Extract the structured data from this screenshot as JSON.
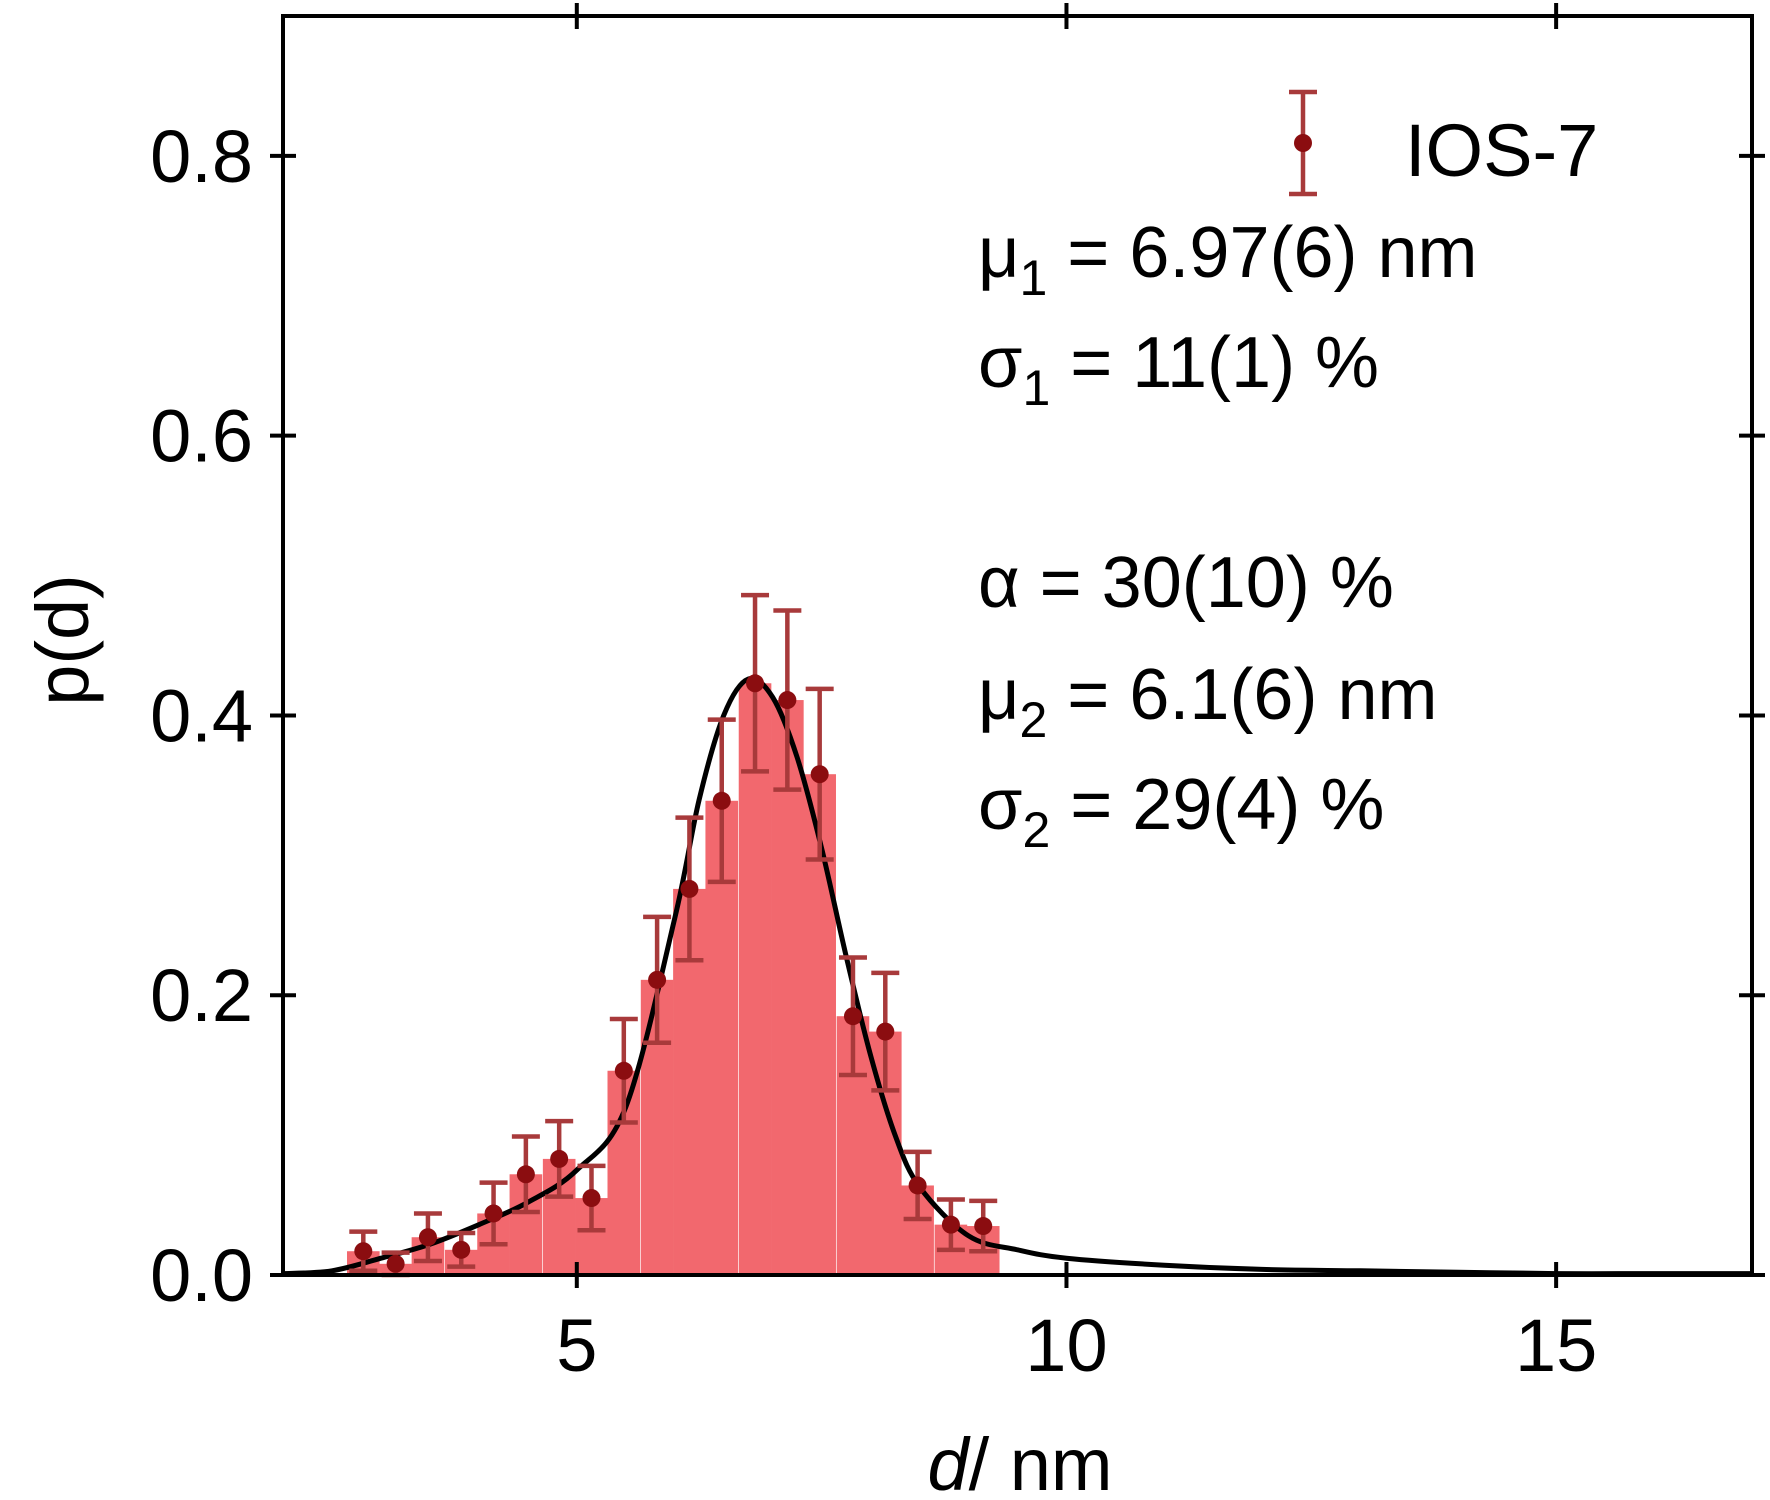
{
  "chart_data": {
    "type": "bar",
    "xlabel_var": "d",
    "xlabel_unit": "/ nm",
    "ylabel": "p(d)",
    "xlim": [
      2.0,
      17.0
    ],
    "ylim": [
      0.0,
      0.9
    ],
    "xticks": [
      5,
      10,
      15
    ],
    "xtick_labels": [
      "5",
      "10",
      "15"
    ],
    "yticks": [
      0.0,
      0.2,
      0.4,
      0.6,
      0.8
    ],
    "ytick_labels": [
      "0.0",
      "0.2",
      "0.4",
      "0.6",
      "0.8"
    ],
    "legend": {
      "label": "IOS-7",
      "placement": "top-right"
    },
    "colors": {
      "bars": "#f2686e",
      "points": "#8b0d10",
      "errorbars": "#a83a3b",
      "fit": "#000000"
    },
    "histogram": {
      "bin_width": 0.333,
      "centers": [
        2.82,
        3.15,
        3.48,
        3.82,
        4.15,
        4.48,
        4.82,
        5.15,
        5.48,
        5.82,
        6.15,
        6.48,
        6.82,
        7.15,
        7.48,
        7.82,
        8.15,
        8.48,
        8.82,
        9.15
      ],
      "values": [
        0.017,
        0.008,
        0.027,
        0.018,
        0.044,
        0.072,
        0.083,
        0.055,
        0.146,
        0.211,
        0.276,
        0.339,
        0.423,
        0.411,
        0.358,
        0.185,
        0.174,
        0.064,
        0.036,
        0.035
      ],
      "errors": [
        0.014,
        0.008,
        0.017,
        0.012,
        0.022,
        0.027,
        0.027,
        0.023,
        0.037,
        0.045,
        0.051,
        0.058,
        0.063,
        0.064,
        0.061,
        0.042,
        0.042,
        0.024,
        0.018,
        0.018
      ]
    },
    "fit_curve": {
      "x": [
        2.0,
        2.5,
        3.0,
        3.5,
        4.0,
        4.5,
        5.0,
        5.5,
        6.0,
        6.25,
        6.5,
        6.75,
        7.0,
        7.25,
        7.5,
        7.75,
        8.0,
        8.25,
        8.5,
        9.0,
        9.5,
        10.0,
        11.0,
        12.0,
        13.0,
        14.0,
        15.0,
        16.0,
        17.0
      ],
      "y": [
        0.001,
        0.003,
        0.012,
        0.022,
        0.036,
        0.052,
        0.075,
        0.12,
        0.255,
        0.34,
        0.4,
        0.426,
        0.413,
        0.37,
        0.305,
        0.228,
        0.157,
        0.1,
        0.063,
        0.028,
        0.018,
        0.012,
        0.007,
        0.004,
        0.003,
        0.002,
        0.001,
        0.001,
        0.001
      ]
    },
    "annotations": [
      {
        "sym": "μ",
        "sub": "1",
        "value": " = 6.97(6)",
        "unit": " nm"
      },
      {
        "sym": "σ",
        "sub": "1",
        "value": " = 11(1)",
        "unit": " %"
      },
      {
        "sym": "α",
        "sub": "",
        "value": " = 30(10)",
        "unit": " %"
      },
      {
        "sym": "μ",
        "sub": "2",
        "value": " = 6.1(6)",
        "unit": " nm"
      },
      {
        "sym": "σ",
        "sub": "2",
        "value": " = 29(4)",
        "unit": " %"
      }
    ]
  }
}
